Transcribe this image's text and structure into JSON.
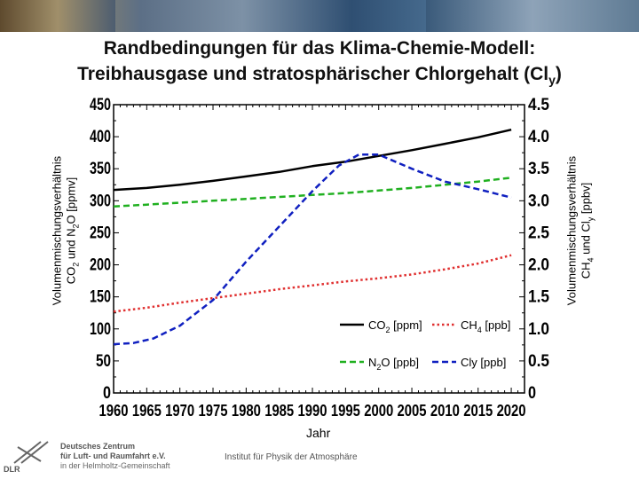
{
  "title": {
    "line1": "Randbedingungen für das Klima-Chemie-Modell:",
    "line2_main": "Treibhausgase und stratosphärischer Chlorgehalt (Cl",
    "line2_sub": "y",
    "line2_end": ")"
  },
  "left_axis_label": {
    "line1": "Volumenmischungsverhältnis",
    "line2_a": "CO",
    "line2_sub1": "2",
    "line2_b": " und N",
    "line2_sub2": "2",
    "line2_c": "O [ppmv]"
  },
  "right_axis_label": {
    "line1": "Volumenmischungsverhältnis",
    "line2_a": "CH",
    "line2_sub1": "4",
    "line2_b": " und Cl",
    "line2_sub2": "y",
    "line2_c": " [ppbv]"
  },
  "x_axis_label": "Jahr",
  "footer": "Institut für Physik der Atmosphäre",
  "logo": {
    "line1": "Deutsches Zentrum",
    "line2": "für Luft- und Raumfahrt e.V.",
    "line3": "in der Helmholtz-Gemeinschaft",
    "mark": "DLR"
  },
  "chart_data": {
    "type": "line",
    "x_range": [
      1960,
      2022
    ],
    "x_ticks": [
      "1960",
      "1965",
      "1970",
      "1975",
      "1980",
      "1985",
      "1990",
      "1995",
      "2000",
      "2005",
      "2010",
      "2015",
      "2020"
    ],
    "y_left_range": [
      0,
      450
    ],
    "y_left_ticks": [
      "0",
      "50",
      "100",
      "150",
      "200",
      "250",
      "300",
      "350",
      "400",
      "450"
    ],
    "y_right_range": [
      0,
      4.5
    ],
    "y_right_ticks": [
      "0",
      "0.5",
      "1.0",
      "1.5",
      "2.0",
      "2.5",
      "3.0",
      "3.5",
      "4.0",
      "4.5"
    ],
    "grid": false,
    "legend_position": "bottom-right",
    "series": [
      {
        "name": "CO2 [ppm]",
        "legend_main": "CO",
        "legend_sub": "2",
        "legend_end": " [ppm]",
        "axis": "left",
        "color": "#000000",
        "style": "solid",
        "x": [
          1960,
          1965,
          1970,
          1975,
          1980,
          1985,
          1990,
          1995,
          2000,
          2005,
          2010,
          2015,
          2020
        ],
        "y": [
          317,
          320,
          325,
          331,
          338,
          345,
          354,
          361,
          370,
          379,
          389,
          399,
          411
        ]
      },
      {
        "name": "CH4 [ppb]",
        "legend_main": "CH",
        "legend_sub": "4",
        "legend_end": " [ppb]",
        "axis": "right",
        "color": "#e03030",
        "style": "dotted",
        "x": [
          1960,
          1965,
          1970,
          1975,
          1980,
          1985,
          1990,
          1995,
          2000,
          2005,
          2010,
          2015,
          2020
        ],
        "y": [
          1.27,
          1.33,
          1.41,
          1.48,
          1.55,
          1.62,
          1.68,
          1.74,
          1.79,
          1.85,
          1.93,
          2.02,
          2.15
        ]
      },
      {
        "name": "N2O [ppb]",
        "legend_main": "N",
        "legend_sub": "2",
        "legend_end": "O [ppb]",
        "axis": "left",
        "color": "#20b020",
        "style": "dashed",
        "x": [
          1960,
          1965,
          1970,
          1975,
          1980,
          1985,
          1990,
          1995,
          2000,
          2005,
          2010,
          2015,
          2020
        ],
        "y": [
          291,
          294,
          297,
          300,
          303,
          306,
          309,
          312,
          316,
          320,
          325,
          330,
          336
        ]
      },
      {
        "name": "Cly [ppb]",
        "legend_main": "Cly [ppb]",
        "legend_sub": "",
        "legend_end": "",
        "axis": "right",
        "color": "#1020c0",
        "style": "dashed",
        "x": [
          1960,
          1963,
          1966,
          1970,
          1975,
          1980,
          1985,
          1990,
          1994,
          1997,
          2000,
          2005,
          2010,
          2015,
          2020
        ],
        "y": [
          0.76,
          0.78,
          0.85,
          1.05,
          1.45,
          2.05,
          2.6,
          3.15,
          3.55,
          3.72,
          3.72,
          3.5,
          3.3,
          3.18,
          3.05
        ]
      }
    ]
  }
}
